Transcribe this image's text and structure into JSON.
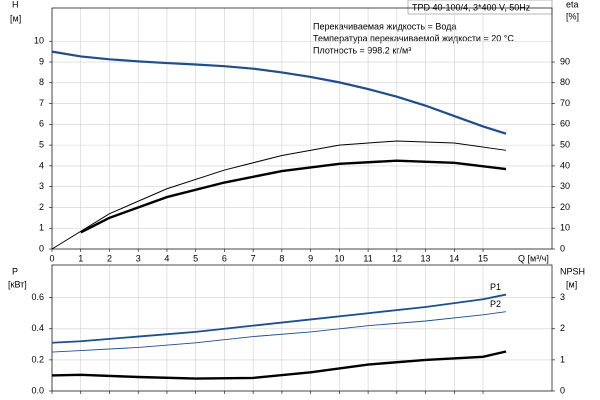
{
  "chart_data": [
    {
      "type": "line",
      "title": "TPD 40-100/4, 3*400 V, 50Hz",
      "annotations": [
        "Перекачиваемая жидкость = Вода",
        "Температура перекачиваемой жидкости = 20 °C",
        "Плотность = 998.2 кг/м³"
      ],
      "y_label": "H",
      "y_unit": "[м]",
      "y2_label": "eta",
      "y2_unit": "[%]",
      "x_label": "Q [м³/ч]",
      "xlim": [
        0,
        17.4
      ],
      "xticks": [
        0,
        1,
        2,
        3,
        4,
        5,
        6,
        7,
        8,
        9,
        10,
        11,
        12,
        13,
        14,
        15
      ],
      "ylim": [
        0,
        11.6
      ],
      "yticks": [
        0,
        1,
        2,
        3,
        4,
        5,
        6,
        7,
        8,
        9,
        10
      ],
      "y2lim": [
        0,
        116
      ],
      "y2ticks": [
        0,
        10,
        20,
        30,
        40,
        50,
        60,
        70,
        80,
        90
      ],
      "grid": true,
      "series": [
        {
          "color": "#1f4e8c",
          "width": 2.2,
          "x": [
            0,
            1,
            2,
            3,
            4,
            5,
            6,
            7,
            8,
            9,
            10,
            11,
            12,
            13,
            14,
            15,
            15.8
          ],
          "values": [
            9.5,
            9.27,
            9.13,
            9.03,
            8.95,
            8.88,
            8.8,
            8.68,
            8.5,
            8.28,
            8.02,
            7.7,
            7.33,
            6.9,
            6.4,
            5.9,
            5.55
          ]
        },
        {
          "color": "#000000",
          "width": 1,
          "axis": "y2",
          "x": [
            0,
            2,
            4,
            6,
            8,
            10,
            12,
            14,
            15.8
          ],
          "values": [
            0,
            17,
            29,
            38,
            45,
            50,
            52,
            51,
            47.5
          ]
        },
        {
          "color": "#000000",
          "width": 2.4,
          "axis": "y2",
          "x": [
            1,
            2,
            4,
            6,
            8,
            10,
            12,
            14,
            15.8
          ],
          "values": [
            8,
            15,
            25,
            32,
            37.5,
            41,
            42.5,
            41.5,
            38.5
          ]
        }
      ]
    },
    {
      "type": "line",
      "y_label": "P",
      "y_unit": "[кВт]",
      "y2_label": "NPSH",
      "y2_unit": "[м]",
      "xlim": [
        0,
        17.4
      ],
      "ylim": [
        0,
        0.81
      ],
      "yticks": [
        {
          "value": 0,
          "label": "0.0"
        },
        0.2,
        0.4,
        0.6
      ],
      "y2lim": [
        0,
        4.05
      ],
      "y2ticks": [
        0,
        1,
        2,
        3
      ],
      "grid": true,
      "series": [
        {
          "name": "P1",
          "color": "#1f4e8c",
          "width": 1.8,
          "x": [
            0,
            1,
            3,
            5,
            7,
            9,
            11,
            13,
            15,
            15.8
          ],
          "values": [
            0.31,
            0.32,
            0.35,
            0.38,
            0.42,
            0.46,
            0.5,
            0.54,
            0.59,
            0.62
          ]
        },
        {
          "name": "P2",
          "color": "#1f4e8c",
          "width": 0.9,
          "x": [
            0,
            1,
            3,
            5,
            7,
            9,
            11,
            13,
            15,
            15.8
          ],
          "values": [
            0.25,
            0.26,
            0.28,
            0.31,
            0.35,
            0.38,
            0.42,
            0.45,
            0.49,
            0.51
          ]
        },
        {
          "color": "#000000",
          "width": 2.4,
          "axis": "y2",
          "x": [
            0,
            1,
            3,
            5,
            7,
            9,
            11,
            13,
            15,
            15.8
          ],
          "values": [
            0.5,
            0.52,
            0.45,
            0.4,
            0.42,
            0.6,
            0.85,
            1.0,
            1.1,
            1.27
          ]
        }
      ]
    }
  ]
}
